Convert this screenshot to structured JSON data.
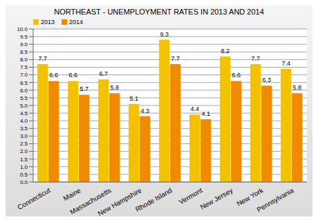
{
  "chart_data": {
    "type": "bar",
    "title": "NORTHEAST - UNEMPLOYMENT RATES IN 2013 AND 2014",
    "categories": [
      "Connecticut",
      "Maine",
      "Massachusetts",
      "New Hampshire",
      "Rhode Island",
      "Vermont",
      "New Jersey",
      "New York",
      "Pennsylvania"
    ],
    "series": [
      {
        "name": "2013",
        "color": "#f2c200",
        "values": [
          7.7,
          6.6,
          6.7,
          5.1,
          9.3,
          4.4,
          8.2,
          7.7,
          7.4
        ]
      },
      {
        "name": "2014",
        "color": "#f08a00",
        "values": [
          6.6,
          5.7,
          5.8,
          4.3,
          7.7,
          4.1,
          6.6,
          6.3,
          5.8
        ]
      }
    ],
    "ylim": [
      0,
      10
    ],
    "yticks": [
      {
        "value": 0,
        "label": "0.0"
      },
      0.5,
      {
        "value": 1,
        "label": "1.0"
      },
      1.5,
      {
        "value": 2,
        "label": "2.0"
      },
      2.5,
      {
        "value": 3,
        "label": "3.0"
      },
      3.5,
      {
        "value": 4,
        "label": "4.0"
      },
      4.5,
      {
        "value": 5,
        "label": "5.0"
      },
      5.5,
      {
        "value": 6,
        "label": "6.0"
      },
      6.5,
      {
        "value": 7,
        "label": "7.0"
      },
      7.5,
      {
        "value": 8,
        "label": "8.0"
      },
      8.5,
      {
        "value": 9,
        "label": "9.0"
      },
      9.5,
      {
        "value": 10,
        "label": "10.0"
      }
    ],
    "grid": true,
    "legend": "top-left",
    "data_labels": true
  }
}
